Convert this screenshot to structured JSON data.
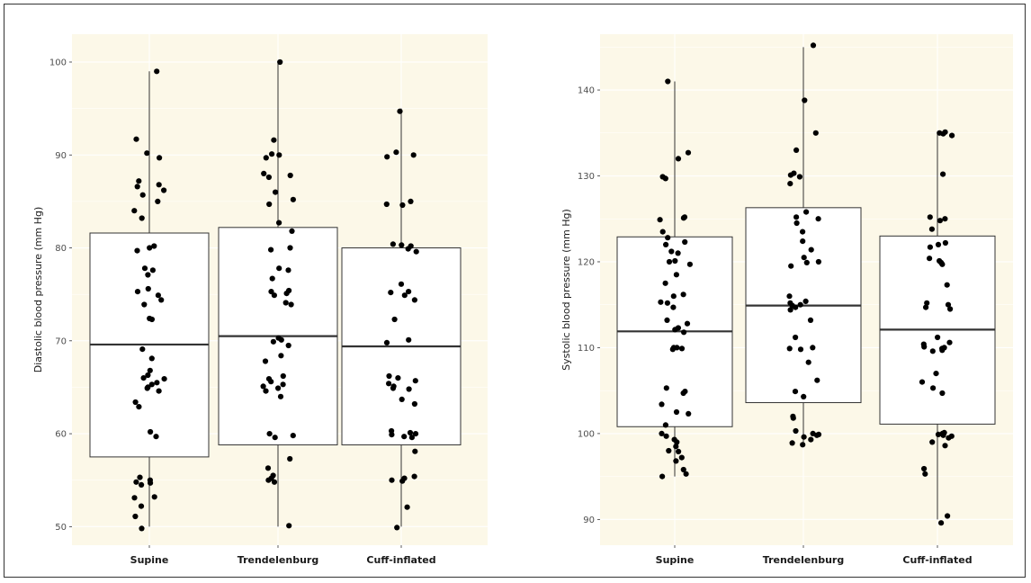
{
  "colors": {
    "panel_bg": "#fcf8e8",
    "grid": "#ffffff",
    "box_fill": "#ffffff",
    "box_stroke": "#333333",
    "point": "#000000"
  },
  "chart_data": [
    {
      "type": "box",
      "title": "",
      "xlabel": "",
      "ylabel": "Diastolic blood pressure (mm Hg)",
      "ylim": [
        48,
        103
      ],
      "yticks": [
        50,
        60,
        70,
        80,
        90,
        100
      ],
      "grid": true,
      "categories": [
        "Supine",
        "Trendelenburg",
        "Cuff-inflated"
      ],
      "boxes": [
        {
          "min": 50,
          "q1": 57.5,
          "median": 69.6,
          "q3": 81.6,
          "max": 99
        },
        {
          "min": 50,
          "q1": 58.8,
          "median": 70.5,
          "q3": 82.2,
          "max": 100
        },
        {
          "min": 50,
          "q1": 58.8,
          "median": 69.4,
          "q3": 80.0,
          "max": 95
        }
      ],
      "points": [
        [
          99,
          91.7,
          90.2,
          89.7,
          87.2,
          86.8,
          86.6,
          86.2,
          85.7,
          85,
          84,
          83.2,
          80.2,
          80,
          79.7,
          77.8,
          77.6,
          77.1,
          75.6,
          75.3,
          74.9,
          74.4,
          73.9,
          72.4,
          72.3,
          69.1,
          68.1,
          66.8,
          66.3,
          66,
          65.9,
          65.5,
          65.3,
          65,
          64.9,
          64.6,
          63.4,
          62.9,
          60.2,
          59.7,
          55.3,
          55,
          54.8,
          54.7,
          54.5,
          53.2,
          53.1,
          52.2,
          51.1,
          49.8
        ],
        [
          100,
          91.6,
          90.1,
          90,
          89.7,
          88,
          87.8,
          87.6,
          86,
          85.2,
          84.7,
          82.7,
          81.8,
          80,
          79.8,
          77.8,
          77.6,
          76.7,
          75.4,
          75.3,
          75.1,
          74.9,
          74.1,
          73.9,
          70.3,
          70.1,
          69.9,
          69.5,
          68.4,
          67.8,
          66.2,
          65.9,
          65.6,
          65.3,
          65.1,
          64.9,
          64.6,
          64,
          60,
          59.8,
          59.6,
          57.3,
          56.3,
          55.5,
          55.2,
          55,
          54.8,
          50.1
        ],
        [
          94.7,
          90.3,
          90,
          89.8,
          85,
          84.7,
          84.6,
          80.4,
          80.3,
          80.2,
          79.9,
          79.6,
          76.1,
          75.3,
          75.2,
          74.9,
          74.4,
          72.3,
          70.1,
          69.8,
          66.2,
          66,
          65.7,
          65.4,
          65.1,
          64.9,
          64.8,
          63.7,
          63.2,
          60.3,
          60.1,
          60,
          59.9,
          59.7,
          59.6,
          58.1,
          55.4,
          55.2,
          55,
          54.9,
          52.1,
          49.9
        ]
      ]
    },
    {
      "type": "box",
      "title": "",
      "xlabel": "",
      "ylabel": "Systolic blood pressure (mm Hg)",
      "ylim": [
        87,
        146.5
      ],
      "yticks": [
        90,
        100,
        110,
        120,
        130,
        140
      ],
      "grid": true,
      "categories": [
        "Supine",
        "Trendelenburg",
        "Cuff-inflated"
      ],
      "boxes": [
        {
          "min": 95,
          "q1": 100.8,
          "median": 111.9,
          "q3": 122.9,
          "max": 141
        },
        {
          "min": 98.8,
          "q1": 103.6,
          "median": 114.9,
          "q3": 126.3,
          "max": 145
        },
        {
          "min": 90,
          "q1": 101.1,
          "median": 112.1,
          "q3": 123,
          "max": 135
        }
      ],
      "points": [
        [
          141,
          132.7,
          132,
          129.9,
          129.7,
          125.2,
          125.1,
          124.9,
          123.5,
          122.8,
          122.3,
          122,
          121.2,
          121,
          120.1,
          120,
          119.7,
          118.5,
          117.5,
          116.2,
          116,
          115.3,
          115.2,
          114.7,
          113.2,
          112.8,
          112.3,
          112.1,
          111.8,
          110,
          110,
          109.9,
          109.8,
          105.3,
          104.9,
          104.7,
          103.4,
          102.5,
          102.3,
          101,
          100,
          99.7,
          99.3,
          99,
          98.5,
          98,
          97.9,
          97.2,
          96.8,
          95.8,
          95.3,
          95
        ],
        [
          145.2,
          138.8,
          135,
          133,
          130.3,
          130.1,
          129.9,
          129.1,
          125.8,
          125.2,
          125,
          124.5,
          123.5,
          122.4,
          121.4,
          120.5,
          120,
          119.9,
          119.5,
          116,
          115.4,
          115.2,
          115,
          114.9,
          114.7,
          114.4,
          113.2,
          111.2,
          110,
          109.9,
          109.8,
          108.3,
          106.2,
          104.9,
          104.3,
          102,
          101.8,
          100.3,
          100,
          99.9,
          99.8,
          99.6,
          99.3,
          98.9,
          98.7
        ],
        [
          135.1,
          135,
          134.9,
          134.7,
          130.2,
          125.2,
          125,
          124.8,
          123.8,
          122.2,
          122,
          121.7,
          120.4,
          120.1,
          119.9,
          119.7,
          117.3,
          115.2,
          115,
          114.7,
          114.5,
          111.2,
          110.6,
          110.4,
          110.1,
          110,
          109.9,
          109.7,
          109.6,
          107,
          106,
          105.3,
          104.7,
          100.1,
          100,
          99.9,
          99.8,
          99.7,
          99.5,
          99,
          98.6,
          95.9,
          95.3,
          90.4,
          89.6
        ]
      ]
    }
  ]
}
